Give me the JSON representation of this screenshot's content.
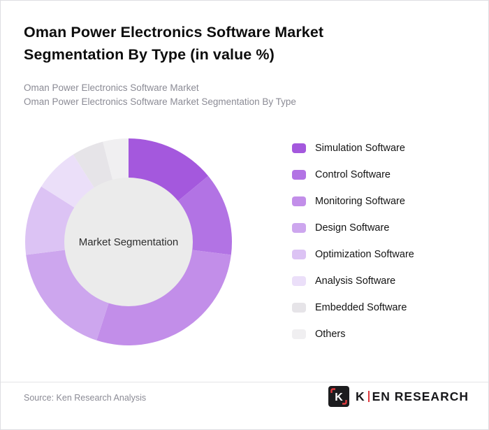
{
  "header": {
    "title": "Oman Power Electronics Software Market Segmentation By Type (in value %)",
    "subtitle1": "Oman Power Electronics Software Market",
    "subtitle2": "Oman Power Electronics Software Market Segmentation By Type"
  },
  "chart_data": {
    "type": "pie",
    "donut": true,
    "title": "Oman Power Electronics Software Market Segmentation By Type (in value %)",
    "center_label": "Market Segmentation",
    "legend_position": "right",
    "start_angle_deg": 0,
    "direction": "clockwise",
    "labels": [
      "Simulation Software",
      "Control Software",
      "Monitoring Software",
      "Design Software",
      "Optimization Software",
      "Analysis Software",
      "Embedded Software",
      "Others"
    ],
    "values": [
      14,
      13,
      28,
      18,
      11,
      7,
      5,
      4
    ],
    "colors": [
      "#a458dd",
      "#b273e4",
      "#c28ee9",
      "#cda6ee",
      "#dcc3f4",
      "#ebdff9",
      "#e6e4e8",
      "#f0eff1"
    ],
    "center_circle_color": "#ebebeb"
  },
  "footer": {
    "source": "Source: Ken Research Analysis",
    "logo_mark": "K",
    "logo_k": "K",
    "logo_rest": "EN RESEARCH",
    "logo_accent_color": "#e03a3e"
  }
}
